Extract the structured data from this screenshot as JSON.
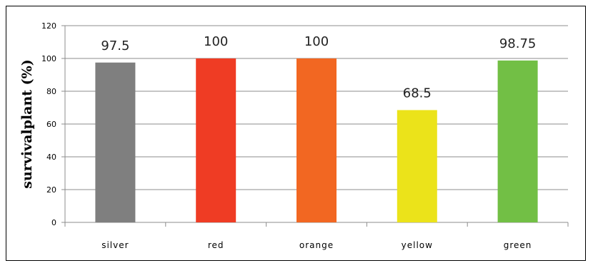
{
  "chart_data": {
    "type": "bar",
    "categories": [
      "silver",
      "red",
      "orange",
      "yellow",
      "green"
    ],
    "values": [
      97.5,
      100,
      100,
      68.5,
      98.75
    ],
    "data_labels": [
      "97.5",
      "100",
      "100",
      "68.5",
      "98.75"
    ],
    "colors": [
      "#7f7f7f",
      "#ef3c24",
      "#f26722",
      "#ebe31a",
      "#72bf45"
    ],
    "title": "",
    "xlabel": "",
    "ylabel": "survivalplant (%)",
    "ylim": [
      0,
      120
    ],
    "yticks": [
      "0",
      "20",
      "40",
      "60",
      "80",
      "100",
      "120"
    ],
    "grid": true,
    "legend": "none"
  }
}
